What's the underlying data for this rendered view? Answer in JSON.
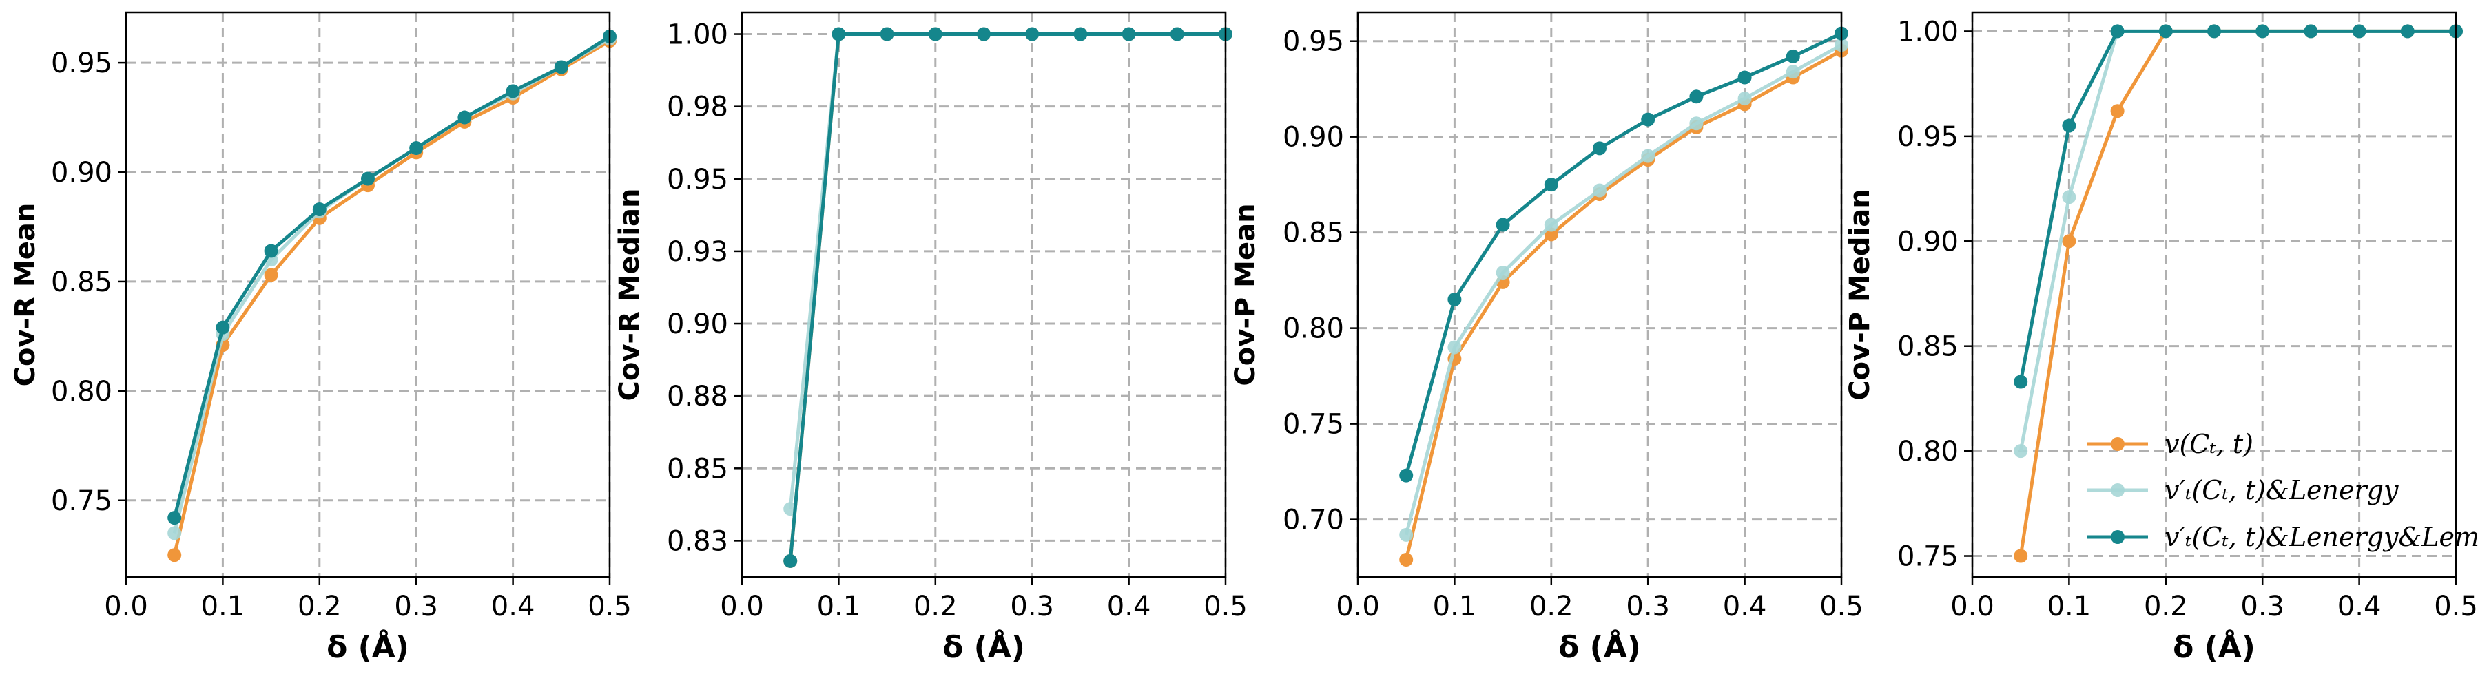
{
  "chart_data": [
    {
      "type": "line",
      "xlabel": "δ (Å)",
      "ylabel": "Cov-R Mean",
      "xlim": [
        0.0,
        0.5
      ],
      "ylim": [
        0.715,
        0.973
      ],
      "xticks": [
        "0.0",
        "0.1",
        "0.2",
        "0.3",
        "0.4",
        "0.5"
      ],
      "yticks": [
        "0.75",
        "0.80",
        "0.85",
        "0.90",
        "0.95"
      ],
      "ytick_values": [
        0.75,
        0.8,
        0.85,
        0.9,
        0.95
      ],
      "grid": true,
      "x": [
        0.05,
        0.1,
        0.15,
        0.2,
        0.25,
        0.3,
        0.35,
        0.4,
        0.45,
        0.5
      ],
      "series": [
        {
          "values": [
            0.725,
            0.821,
            0.853,
            0.879,
            0.894,
            0.909,
            0.923,
            0.934,
            0.947,
            0.96
          ]
        },
        {
          "values": [
            0.735,
            0.826,
            0.86,
            0.882,
            0.897,
            0.911,
            0.925,
            0.936,
            0.948,
            0.961
          ]
        },
        {
          "values": [
            0.742,
            0.829,
            0.864,
            0.883,
            0.897,
            0.911,
            0.925,
            0.937,
            0.948,
            0.962
          ]
        }
      ]
    },
    {
      "type": "line",
      "xlabel": "δ (Å)",
      "ylabel": "Cov-R Median",
      "xlim": [
        0.0,
        0.5
      ],
      "ylim": [
        0.8125,
        1.0075
      ],
      "xticks": [
        "0.0",
        "0.1",
        "0.2",
        "0.3",
        "0.4",
        "0.5"
      ],
      "yticks": [
        "0.83",
        "0.85",
        "0.88",
        "0.90",
        "0.93",
        "0.95",
        "0.98",
        "1.00"
      ],
      "ytick_values": [
        0.825,
        0.85,
        0.875,
        0.9,
        0.925,
        0.95,
        0.975,
        1.0
      ],
      "grid": true,
      "x": [
        0.05,
        0.1,
        0.15,
        0.2,
        0.25,
        0.3,
        0.35,
        0.4,
        0.45,
        0.5
      ],
      "series": [
        {
          "values": [
            0.818,
            1.0,
            1.0,
            1.0,
            1.0,
            1.0,
            1.0,
            1.0,
            1.0,
            1.0
          ]
        },
        {
          "values": [
            0.836,
            1.0,
            1.0,
            1.0,
            1.0,
            1.0,
            1.0,
            1.0,
            1.0,
            1.0
          ]
        },
        {
          "values": [
            0.818,
            1.0,
            1.0,
            1.0,
            1.0,
            1.0,
            1.0,
            1.0,
            1.0,
            1.0
          ]
        }
      ]
    },
    {
      "type": "line",
      "xlabel": "δ (Å)",
      "ylabel": "Cov-P Mean",
      "xlim": [
        0.0,
        0.5
      ],
      "ylim": [
        0.67,
        0.965
      ],
      "xticks": [
        "0.0",
        "0.1",
        "0.2",
        "0.3",
        "0.4",
        "0.5"
      ],
      "yticks": [
        "0.70",
        "0.75",
        "0.80",
        "0.85",
        "0.90",
        "0.95"
      ],
      "ytick_values": [
        0.7,
        0.75,
        0.8,
        0.85,
        0.9,
        0.95
      ],
      "grid": true,
      "x": [
        0.05,
        0.1,
        0.15,
        0.2,
        0.25,
        0.3,
        0.35,
        0.4,
        0.45,
        0.5
      ],
      "series": [
        {
          "values": [
            0.679,
            0.784,
            0.824,
            0.849,
            0.87,
            0.888,
            0.905,
            0.917,
            0.931,
            0.945
          ]
        },
        {
          "values": [
            0.692,
            0.79,
            0.829,
            0.854,
            0.872,
            0.89,
            0.907,
            0.92,
            0.934,
            0.948
          ]
        },
        {
          "values": [
            0.723,
            0.815,
            0.854,
            0.875,
            0.894,
            0.909,
            0.921,
            0.931,
            0.942,
            0.954
          ]
        }
      ]
    },
    {
      "type": "line",
      "xlabel": "δ (Å)",
      "ylabel": "Cov-P Median",
      "xlim": [
        0.0,
        0.5
      ],
      "ylim": [
        0.74,
        1.009
      ],
      "xticks": [
        "0.0",
        "0.1",
        "0.2",
        "0.3",
        "0.4",
        "0.5"
      ],
      "yticks": [
        "0.75",
        "0.80",
        "0.85",
        "0.90",
        "0.95",
        "1.00"
      ],
      "ytick_values": [
        0.75,
        0.8,
        0.85,
        0.9,
        0.95,
        1.0
      ],
      "grid": true,
      "legend": "lower-right",
      "x": [
        0.05,
        0.1,
        0.15,
        0.2,
        0.25,
        0.3,
        0.35,
        0.4,
        0.45,
        0.5
      ],
      "series": [
        {
          "name": "v(Cₜ, t)",
          "values": [
            0.75,
            0.9,
            0.962,
            1.0,
            1.0,
            1.0,
            1.0,
            1.0,
            1.0,
            1.0
          ]
        },
        {
          "name": "v′ₜ(Cₜ, t)&Lenergy",
          "values": [
            0.8,
            0.921,
            1.0,
            1.0,
            1.0,
            1.0,
            1.0,
            1.0,
            1.0,
            1.0
          ]
        },
        {
          "name": "v′ₜ(Cₜ, t)&Lenergy&Lem",
          "values": [
            0.833,
            0.955,
            1.0,
            1.0,
            1.0,
            1.0,
            1.0,
            1.0,
            1.0,
            1.0
          ]
        }
      ]
    }
  ],
  "series_colors": [
    "#f0963a",
    "#a6d6d6",
    "#15868c"
  ]
}
